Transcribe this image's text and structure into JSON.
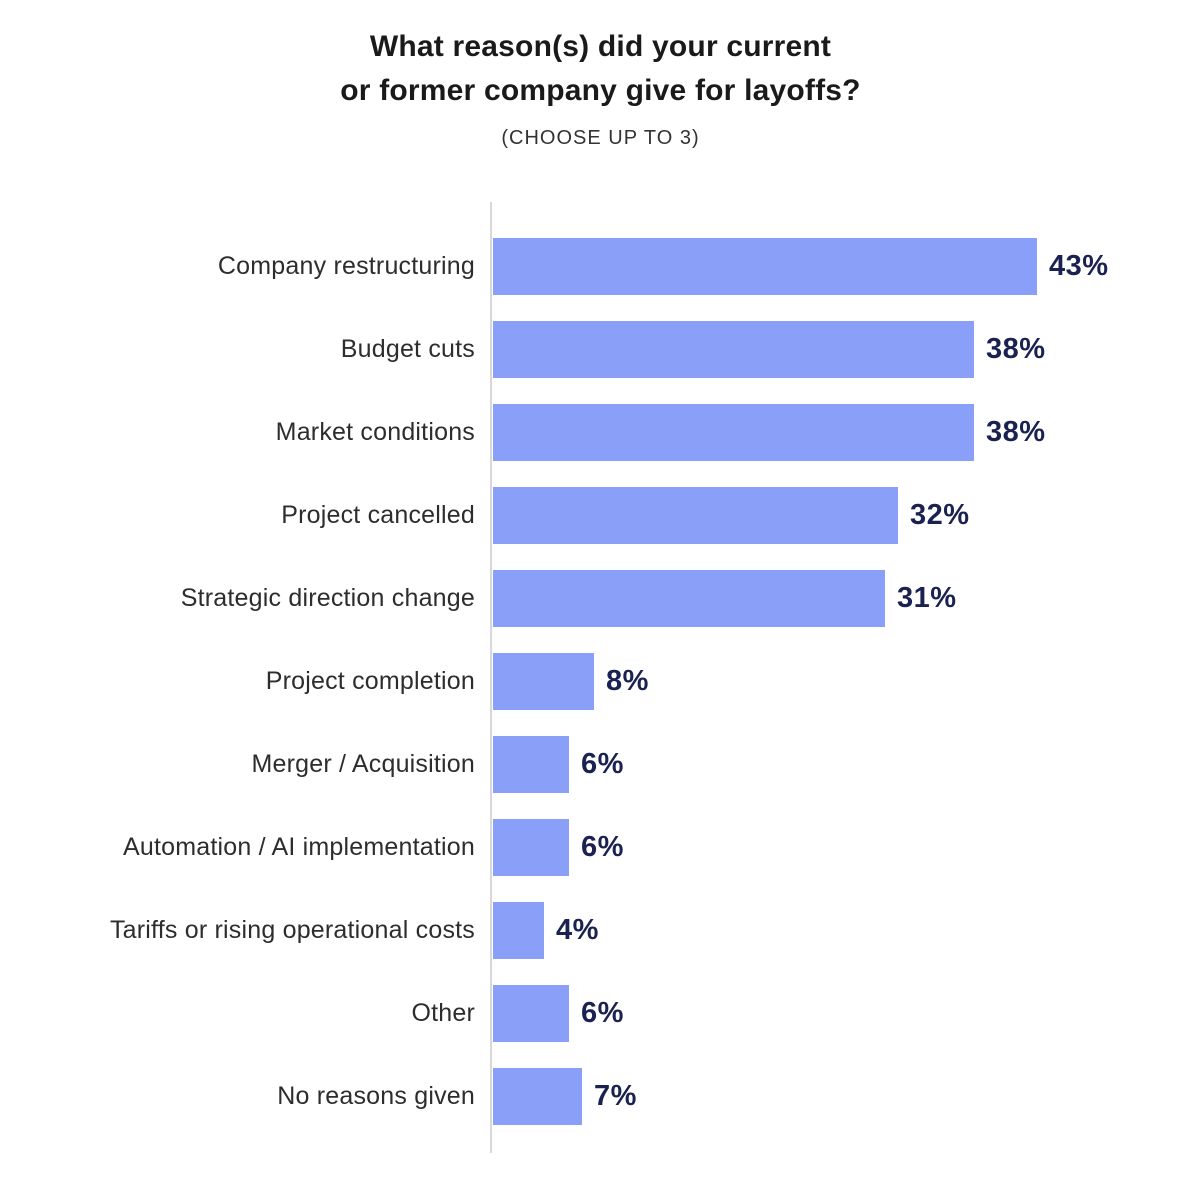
{
  "page": {
    "background": "#ffffff"
  },
  "header": {
    "title_line1": "What reason(s) did your current",
    "title_line2": "or former company give for layoffs?",
    "subtitle": "(CHOOSE UP TO 3)"
  },
  "chart_data": {
    "type": "bar",
    "orientation": "horizontal",
    "title": "What reason(s) did your current or former company give for layoffs?",
    "subtitle": "(CHOOSE UP TO 3)",
    "categories": [
      "Company restructuring",
      "Budget cuts",
      "Market conditions",
      "Project cancelled",
      "Strategic direction change",
      "Project completion",
      "Merger / Acquisition",
      "Automation / AI implementation",
      "Tariffs or rising operational costs",
      "Other",
      "No reasons given"
    ],
    "values": [
      43,
      38,
      38,
      32,
      31,
      8,
      6,
      6,
      4,
      6,
      7
    ],
    "value_labels": [
      "43%",
      "38%",
      "38%",
      "32%",
      "31%",
      "8%",
      "6%",
      "6%",
      "4%",
      "6%",
      "7%"
    ],
    "unit": "%",
    "xlim": [
      0,
      43
    ],
    "grid": false,
    "legend": false,
    "bar_color": "#8aa0f8",
    "value_label_color": "#1b2150",
    "category_label_color": "#2d2d2d",
    "axis_line_color": "#d8d8d8",
    "title_color": "#1a1a1a"
  }
}
